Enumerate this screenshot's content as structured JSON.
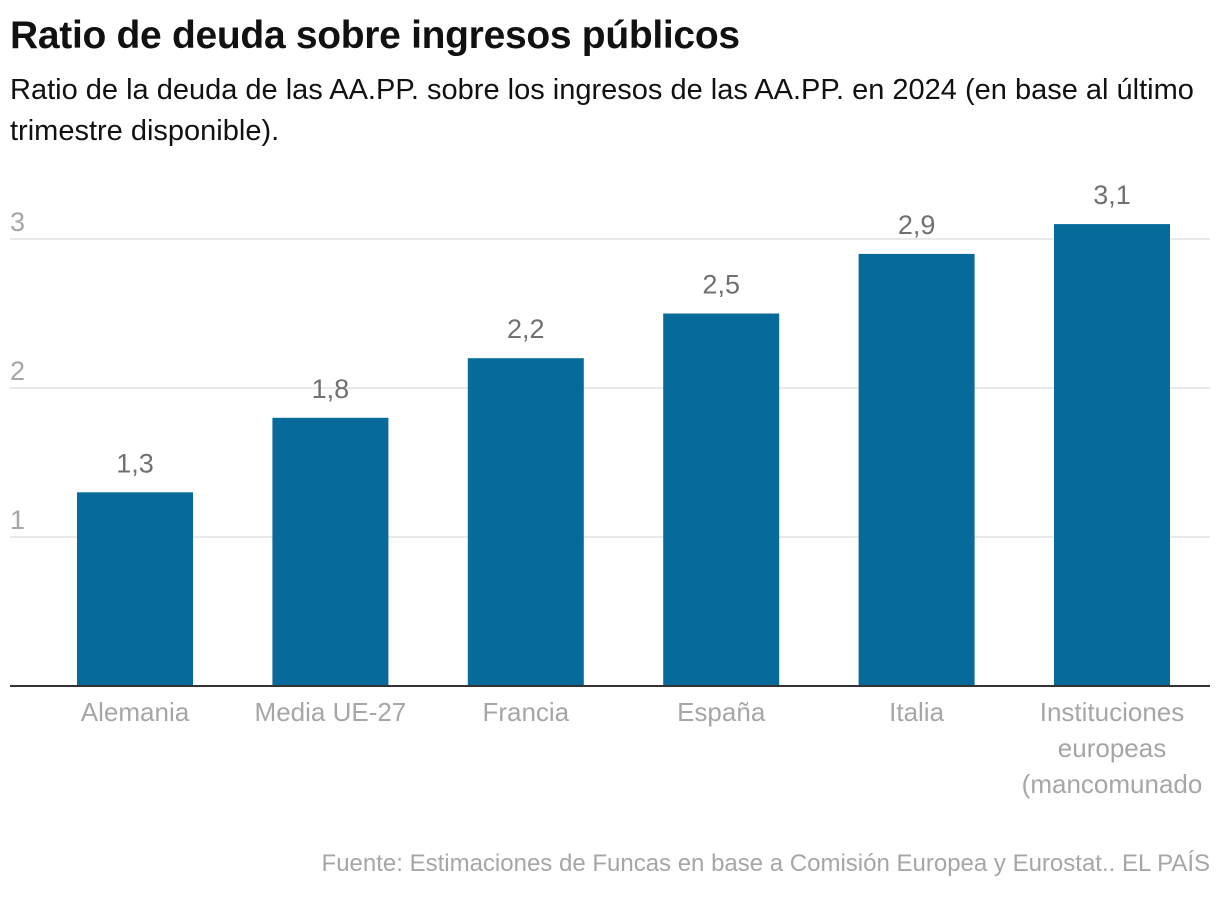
{
  "header": {
    "title": "Ratio de deuda sobre ingresos públicos",
    "subtitle": "Ratio de la deuda de las AA.PP. sobre los ingresos de las AA.PP. en 2024 (en base al último trimestre disponible)."
  },
  "footer": {
    "source": "Fuente: Estimaciones de Funcas en base a Comisión Europea y Eurostat.. EL PAÍS"
  },
  "colors": {
    "bar": "#066a9b",
    "grid": "#e2e2e2",
    "axis": "#333333",
    "tick_label": "#a6a6a6",
    "data_label": "#707070"
  },
  "chart_data": {
    "type": "bar",
    "categories": [
      [
        "Alemania"
      ],
      [
        "Media UE-27"
      ],
      [
        "Francia"
      ],
      [
        "España"
      ],
      [
        "Italia"
      ],
      [
        "Instituciones",
        "europeas",
        "(mancomunado"
      ]
    ],
    "values": [
      1.3,
      1.8,
      2.2,
      2.5,
      2.9,
      3.1
    ],
    "value_labels": [
      "1,3",
      "1,8",
      "2,2",
      "2,5",
      "2,9",
      "3,1"
    ],
    "yticks": [
      1,
      2,
      3
    ],
    "ylim": [
      0,
      3.1
    ],
    "grid": true,
    "legend": "none"
  }
}
